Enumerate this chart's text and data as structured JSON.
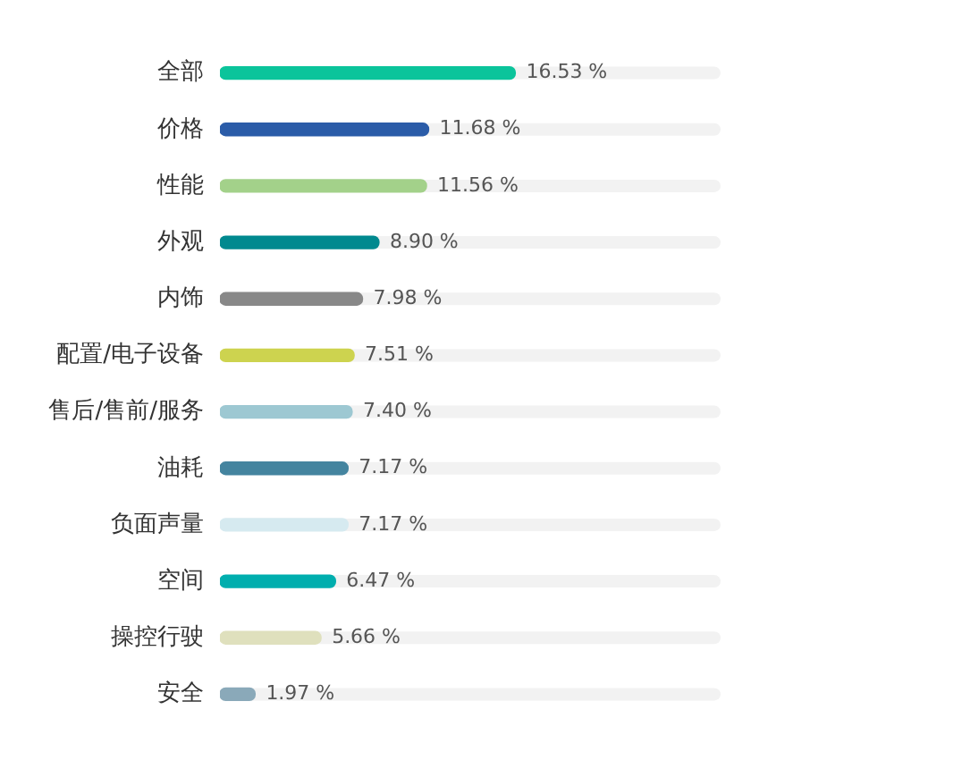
{
  "chart_data": {
    "type": "bar",
    "orientation": "horizontal",
    "categories": [
      "全部",
      "价格",
      "性能",
      "外观",
      "内饰",
      "配置/电子设备",
      "售后/售前/服务",
      "油耗",
      "负面声量",
      "空间",
      "操控行驶",
      "安全"
    ],
    "values": [
      16.53,
      11.68,
      11.56,
      8.9,
      7.98,
      7.51,
      7.4,
      7.17,
      7.17,
      6.47,
      5.66,
      1.97
    ],
    "colors": [
      "#0bc49b",
      "#2b5ca8",
      "#a3d18a",
      "#00898f",
      "#888888",
      "#cdd34f",
      "#9dc8d2",
      "#44849f",
      "#d6eaf0",
      "#00aeae",
      "#dfe0bd",
      "#8aa9b9"
    ],
    "value_labels": [
      "16.53 %",
      "11.68 %",
      "11.56 %",
      "8.90 %",
      "7.98 %",
      "7.51 %",
      "7.40 %",
      "7.17 %",
      "7.17 %",
      "6.47 %",
      "5.66 %",
      "1.97 %"
    ]
  }
}
